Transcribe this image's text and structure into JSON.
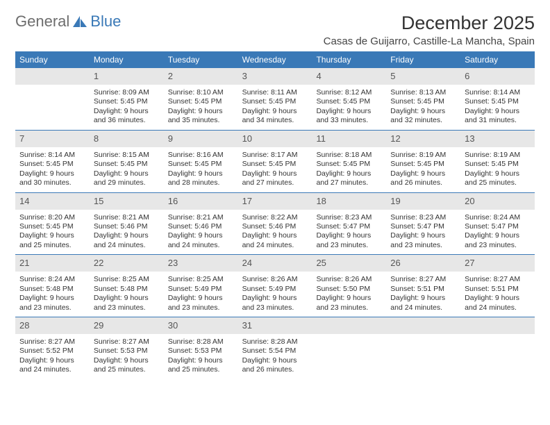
{
  "logo": {
    "text1": "General",
    "text2": "Blue"
  },
  "title": "December 2025",
  "subtitle": "Casas de Guijarro, Castille-La Mancha, Spain",
  "colors": {
    "header_bg": "#3a79b7",
    "daynum_bg": "#e7e7e7",
    "rule": "#3a79b7",
    "text": "#333333",
    "logo_gray": "#6d6d6d",
    "logo_blue": "#3a79b7"
  },
  "weekdays": [
    "Sunday",
    "Monday",
    "Tuesday",
    "Wednesday",
    "Thursday",
    "Friday",
    "Saturday"
  ],
  "weeks": [
    [
      null,
      {
        "n": "1",
        "sr": "8:09 AM",
        "ss": "5:45 PM",
        "dl": "9 hours and 36 minutes."
      },
      {
        "n": "2",
        "sr": "8:10 AM",
        "ss": "5:45 PM",
        "dl": "9 hours and 35 minutes."
      },
      {
        "n": "3",
        "sr": "8:11 AM",
        "ss": "5:45 PM",
        "dl": "9 hours and 34 minutes."
      },
      {
        "n": "4",
        "sr": "8:12 AM",
        "ss": "5:45 PM",
        "dl": "9 hours and 33 minutes."
      },
      {
        "n": "5",
        "sr": "8:13 AM",
        "ss": "5:45 PM",
        "dl": "9 hours and 32 minutes."
      },
      {
        "n": "6",
        "sr": "8:14 AM",
        "ss": "5:45 PM",
        "dl": "9 hours and 31 minutes."
      }
    ],
    [
      {
        "n": "7",
        "sr": "8:14 AM",
        "ss": "5:45 PM",
        "dl": "9 hours and 30 minutes."
      },
      {
        "n": "8",
        "sr": "8:15 AM",
        "ss": "5:45 PM",
        "dl": "9 hours and 29 minutes."
      },
      {
        "n": "9",
        "sr": "8:16 AM",
        "ss": "5:45 PM",
        "dl": "9 hours and 28 minutes."
      },
      {
        "n": "10",
        "sr": "8:17 AM",
        "ss": "5:45 PM",
        "dl": "9 hours and 27 minutes."
      },
      {
        "n": "11",
        "sr": "8:18 AM",
        "ss": "5:45 PM",
        "dl": "9 hours and 27 minutes."
      },
      {
        "n": "12",
        "sr": "8:19 AM",
        "ss": "5:45 PM",
        "dl": "9 hours and 26 minutes."
      },
      {
        "n": "13",
        "sr": "8:19 AM",
        "ss": "5:45 PM",
        "dl": "9 hours and 25 minutes."
      }
    ],
    [
      {
        "n": "14",
        "sr": "8:20 AM",
        "ss": "5:45 PM",
        "dl": "9 hours and 25 minutes."
      },
      {
        "n": "15",
        "sr": "8:21 AM",
        "ss": "5:46 PM",
        "dl": "9 hours and 24 minutes."
      },
      {
        "n": "16",
        "sr": "8:21 AM",
        "ss": "5:46 PM",
        "dl": "9 hours and 24 minutes."
      },
      {
        "n": "17",
        "sr": "8:22 AM",
        "ss": "5:46 PM",
        "dl": "9 hours and 24 minutes."
      },
      {
        "n": "18",
        "sr": "8:23 AM",
        "ss": "5:47 PM",
        "dl": "9 hours and 23 minutes."
      },
      {
        "n": "19",
        "sr": "8:23 AM",
        "ss": "5:47 PM",
        "dl": "9 hours and 23 minutes."
      },
      {
        "n": "20",
        "sr": "8:24 AM",
        "ss": "5:47 PM",
        "dl": "9 hours and 23 minutes."
      }
    ],
    [
      {
        "n": "21",
        "sr": "8:24 AM",
        "ss": "5:48 PM",
        "dl": "9 hours and 23 minutes."
      },
      {
        "n": "22",
        "sr": "8:25 AM",
        "ss": "5:48 PM",
        "dl": "9 hours and 23 minutes."
      },
      {
        "n": "23",
        "sr": "8:25 AM",
        "ss": "5:49 PM",
        "dl": "9 hours and 23 minutes."
      },
      {
        "n": "24",
        "sr": "8:26 AM",
        "ss": "5:49 PM",
        "dl": "9 hours and 23 minutes."
      },
      {
        "n": "25",
        "sr": "8:26 AM",
        "ss": "5:50 PM",
        "dl": "9 hours and 23 minutes."
      },
      {
        "n": "26",
        "sr": "8:27 AM",
        "ss": "5:51 PM",
        "dl": "9 hours and 24 minutes."
      },
      {
        "n": "27",
        "sr": "8:27 AM",
        "ss": "5:51 PM",
        "dl": "9 hours and 24 minutes."
      }
    ],
    [
      {
        "n": "28",
        "sr": "8:27 AM",
        "ss": "5:52 PM",
        "dl": "9 hours and 24 minutes."
      },
      {
        "n": "29",
        "sr": "8:27 AM",
        "ss": "5:53 PM",
        "dl": "9 hours and 25 minutes."
      },
      {
        "n": "30",
        "sr": "8:28 AM",
        "ss": "5:53 PM",
        "dl": "9 hours and 25 minutes."
      },
      {
        "n": "31",
        "sr": "8:28 AM",
        "ss": "5:54 PM",
        "dl": "9 hours and 26 minutes."
      },
      null,
      null,
      null
    ]
  ],
  "labels": {
    "sunrise": "Sunrise:",
    "sunset": "Sunset:",
    "daylight": "Daylight:"
  }
}
